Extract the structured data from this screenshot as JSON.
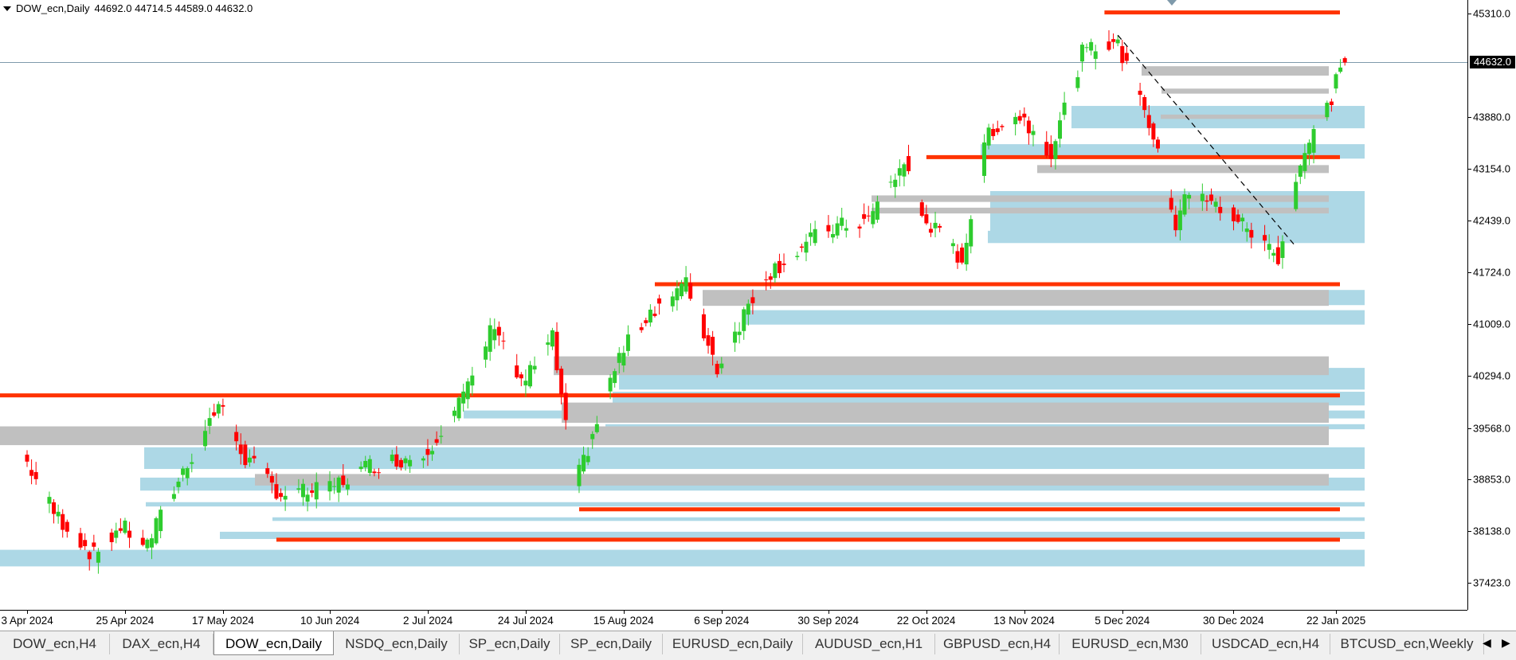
{
  "header": {
    "symbol": "DOW_ecn,Daily",
    "ohlc": "44692.0 44714.5 44589.0 44632.0"
  },
  "price_axis": {
    "labels": [
      "45310.0",
      "43880.0",
      "43154.0",
      "42439.0",
      "41724.0",
      "41009.0",
      "40294.0",
      "39568.0",
      "38853.0",
      "38138.0",
      "37423.0"
    ],
    "current_price": "44632.0"
  },
  "time_axis": {
    "labels": [
      "3 Apr 2024",
      "25 Apr 2024",
      "17 May 2024",
      "10 Jun 2024",
      "2 Jul 2024",
      "24 Jul 2024",
      "15 Aug 2024",
      "6 Sep 2024",
      "30 Sep 2024",
      "22 Oct 2024",
      "13 Nov 2024",
      "5 Dec 2024",
      "30 Dec 2024",
      "22 Jan 2025"
    ]
  },
  "tabs": [
    {
      "label": "DOW_ecn,H4",
      "active": false
    },
    {
      "label": "DAX_ecn,H4",
      "active": false
    },
    {
      "label": "DOW_ecn,Daily",
      "active": true
    },
    {
      "label": "NSDQ_ecn,Daily",
      "active": false
    },
    {
      "label": "SP_ecn,Daily",
      "active": false
    },
    {
      "label": "SP_ecn,Daily",
      "active": false
    },
    {
      "label": "EURUSD_ecn,Daily",
      "active": false
    },
    {
      "label": "AUDUSD_ecn,H1",
      "active": false
    },
    {
      "label": "GBPUSD_ecn,H4",
      "active": false
    },
    {
      "label": "EURUSD_ecn,M30",
      "active": false
    },
    {
      "label": "USDCAD_ecn,H4",
      "active": false
    },
    {
      "label": "BTCUSD_ecn,Weekly",
      "active": false
    }
  ],
  "tab_nav": {
    "left": "◀",
    "right": "▶"
  },
  "colors": {
    "bull": "#2ecc2e",
    "bear": "#ff0000",
    "support_resistance": "#ff3300",
    "demand_zone": "#add8e6",
    "supply_zone": "#c0c0c0",
    "trendline": "#000000",
    "current_price_line": "#7f9aab"
  },
  "chart_data": {
    "type": "candlestick",
    "symbol": "DOW_ecn",
    "timeframe": "Daily",
    "last_bar": {
      "open": 44692.0,
      "high": 44714.5,
      "low": 44589.0,
      "close": 44632.0
    },
    "ylim": [
      37000,
      45450
    ],
    "y_ticks": [
      45310.0,
      43880.0,
      43154.0,
      42439.0,
      41724.0,
      41009.0,
      40294.0,
      39568.0,
      38853.0,
      38138.0,
      37423.0
    ],
    "x_ticks": [
      "3 Apr 2024",
      "25 Apr 2024",
      "17 May 2024",
      "10 Jun 2024",
      "2 Jul 2024",
      "24 Jul 2024",
      "15 Aug 2024",
      "6 Sep 2024",
      "30 Sep 2024",
      "22 Oct 2024",
      "13 Nov 2024",
      "5 Dec 2024",
      "30 Dec 2024",
      "22 Jan 2025"
    ],
    "close_path": [
      [
        "3 Apr 2024",
        39200
      ],
      [
        "10 Apr 2024",
        38400
      ],
      [
        "19 Apr 2024",
        37800
      ],
      [
        "25 Apr 2024",
        38200
      ],
      [
        "1 May 2024",
        37950
      ],
      [
        "8 May 2024",
        38850
      ],
      [
        "17 May 2024",
        39900
      ],
      [
        "23 May 2024",
        39150
      ],
      [
        "31 May 2024",
        38650
      ],
      [
        "10 Jun 2024",
        38700
      ],
      [
        "20 Jun 2024",
        39050
      ],
      [
        "2 Jul 2024",
        39200
      ],
      [
        "12 Jul 2024",
        40100
      ],
      [
        "18 Jul 2024",
        41050
      ],
      [
        "24 Jul 2024",
        40150
      ],
      [
        "31 Jul 2024",
        40800
      ],
      [
        "5 Aug 2024",
        38750
      ],
      [
        "15 Aug 2024",
        40550
      ],
      [
        "22 Aug 2024",
        41200
      ],
      [
        "30 Aug 2024",
        41550
      ],
      [
        "6 Sep 2024",
        40400
      ],
      [
        "16 Sep 2024",
        41650
      ],
      [
        "30 Sep 2024",
        42300
      ],
      [
        "10 Oct 2024",
        42450
      ],
      [
        "18 Oct 2024",
        43250
      ],
      [
        "22 Oct 2024",
        42500
      ],
      [
        "31 Oct 2024",
        41900
      ],
      [
        "6 Nov 2024",
        43700
      ],
      [
        "13 Nov 2024",
        43900
      ],
      [
        "20 Nov 2024",
        43400
      ],
      [
        "27 Nov 2024",
        44750
      ],
      [
        "4 Dec 2024",
        44950
      ],
      [
        "10 Dec 2024",
        44250
      ],
      [
        "18 Dec 2024",
        42400
      ],
      [
        "20 Dec 2024",
        42850
      ],
      [
        "30 Dec 2024",
        42550
      ],
      [
        "10 Jan 2025",
        41950
      ],
      [
        "15 Jan 2025",
        43250
      ],
      [
        "22 Jan 2025",
        44150
      ],
      [
        "24 Jan 2025",
        44632
      ]
    ],
    "horizontal_levels": [
      {
        "price": 45325,
        "from": "1 Dec 2024"
      },
      {
        "price": 43320,
        "from": "22 Oct 2024"
      },
      {
        "price": 41560,
        "from": "22 Aug 2024"
      },
      {
        "price": 40020,
        "from": "3 Apr 2024"
      },
      {
        "price": 38440,
        "from": "5 Aug 2024"
      },
      {
        "price": 38020,
        "from": "29 May 2024"
      }
    ],
    "demand_zones": [
      [
        43720,
        44030
      ],
      [
        43300,
        43500
      ],
      [
        42200,
        42850
      ],
      [
        42130,
        42300
      ],
      [
        41270,
        41480
      ],
      [
        41000,
        41200
      ],
      [
        40100,
        40400
      ],
      [
        39880,
        40070
      ],
      [
        39550,
        39620
      ],
      [
        39700,
        39810
      ],
      [
        39000,
        39300
      ],
      [
        38700,
        38880
      ],
      [
        38480,
        38540
      ],
      [
        38280,
        38330
      ],
      [
        38030,
        38130
      ],
      [
        37650,
        37880
      ]
    ],
    "supply_zones": [
      [
        44450,
        44580
      ],
      [
        44200,
        44270
      ],
      [
        43850,
        43910
      ],
      [
        43100,
        43210
      ],
      [
        42700,
        42790
      ],
      [
        42540,
        42620
      ],
      [
        41260,
        41480
      ],
      [
        40300,
        40560
      ],
      [
        39640,
        39920
      ],
      [
        39330,
        39590
      ],
      [
        38770,
        38930
      ]
    ],
    "trendline": {
      "from": [
        "4 Dec 2024",
        45010
      ],
      "to": [
        "13 Jan 2025",
        42080
      ],
      "style": "dashed"
    }
  }
}
